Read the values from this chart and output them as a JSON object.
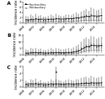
{
  "years": [
    1988,
    1989,
    1990,
    1991,
    1992,
    1993,
    1994,
    1995,
    1996,
    1997,
    1998,
    1999,
    2000,
    2001,
    2002,
    2003,
    2004,
    2005,
    2006,
    2007,
    2008,
    2009,
    2010,
    2011,
    2012,
    2013,
    2014,
    2015,
    2016,
    2017,
    2018
  ],
  "panel_A": {
    "label": "A",
    "pb": [
      1.2,
      1.0,
      1.5,
      1.3,
      1.8,
      1.2,
      1.4,
      1.0,
      1.1,
      1.3,
      1.5,
      1.2,
      1.8,
      1.4,
      1.2,
      1.3,
      1.6,
      1.5,
      1.4,
      1.8,
      2.0,
      1.7,
      2.2,
      2.5,
      2.8,
      2.3,
      3.0,
      2.7,
      2.4,
      2.6,
      2.8
    ],
    "pb_ci_lo": [
      0.3,
      0.2,
      0.4,
      0.3,
      0.5,
      0.3,
      0.4,
      0.2,
      0.2,
      0.3,
      0.4,
      0.2,
      0.5,
      0.3,
      0.3,
      0.3,
      0.4,
      0.4,
      0.3,
      0.5,
      0.6,
      0.4,
      0.7,
      0.8,
      1.0,
      0.7,
      1.0,
      0.9,
      0.7,
      0.8,
      0.9
    ],
    "pb_ci_hi": [
      2.5,
      2.3,
      3.0,
      2.7,
      3.5,
      2.5,
      2.8,
      2.2,
      2.4,
      2.7,
      3.0,
      2.5,
      3.5,
      2.8,
      2.5,
      2.7,
      3.1,
      3.0,
      2.9,
      3.5,
      3.8,
      3.4,
      4.2,
      4.8,
      5.2,
      4.5,
      5.8,
      5.2,
      4.8,
      5.0,
      5.5
    ],
    "mb": [
      0.5,
      0.4,
      0.6,
      0.5,
      0.7,
      0.4,
      0.5,
      0.3,
      0.4,
      0.5,
      0.6,
      0.4,
      0.7,
      0.5,
      0.4,
      0.5,
      0.6,
      0.5,
      0.5,
      0.6,
      0.7,
      0.6,
      0.8,
      0.9,
      1.0,
      0.8,
      1.1,
      0.9,
      0.8,
      0.9,
      0.9
    ],
    "mb_ci_lo": [
      0.05,
      0.03,
      0.08,
      0.07,
      0.1,
      0.05,
      0.07,
      0.03,
      0.03,
      0.05,
      0.08,
      0.04,
      0.1,
      0.07,
      0.05,
      0.07,
      0.08,
      0.07,
      0.07,
      0.08,
      0.1,
      0.08,
      0.15,
      0.18,
      0.22,
      0.15,
      0.25,
      0.18,
      0.15,
      0.18,
      0.18
    ],
    "mb_ci_hi": [
      1.2,
      1.0,
      1.5,
      1.3,
      1.7,
      1.1,
      1.3,
      0.9,
      1.0,
      1.2,
      1.5,
      1.0,
      1.7,
      1.3,
      1.1,
      1.3,
      1.5,
      1.3,
      1.3,
      1.5,
      1.7,
      1.5,
      1.9,
      2.1,
      2.3,
      1.9,
      2.5,
      2.1,
      1.9,
      2.1,
      2.1
    ],
    "ylim": [
      0,
      8
    ],
    "yticks": [
      0,
      2,
      4,
      6,
      8
    ],
    "smooth_pb": [
      1.1,
      1.15,
      1.2,
      1.25,
      1.3,
      1.35,
      1.4,
      1.38,
      1.36,
      1.38,
      1.4,
      1.42,
      1.5,
      1.55,
      1.5,
      1.52,
      1.58,
      1.62,
      1.65,
      1.72,
      1.85,
      1.9,
      2.1,
      2.2,
      2.4,
      2.45,
      2.6,
      2.65,
      2.55,
      2.6,
      2.7
    ],
    "smooth_mb": [
      0.45,
      0.47,
      0.5,
      0.52,
      0.55,
      0.5,
      0.52,
      0.48,
      0.46,
      0.48,
      0.5,
      0.52,
      0.58,
      0.58,
      0.55,
      0.55,
      0.58,
      0.58,
      0.58,
      0.62,
      0.67,
      0.68,
      0.75,
      0.8,
      0.88,
      0.88,
      0.95,
      0.92,
      0.88,
      0.9,
      0.92
    ]
  },
  "panel_B": {
    "label": "B",
    "pb": [
      1.5,
      1.2,
      2.0,
      1.8,
      2.2,
      1.5,
      1.8,
      1.2,
      1.3,
      1.5,
      2.0,
      1.5,
      2.2,
      1.8,
      1.5,
      1.5,
      1.8,
      2.0,
      1.8,
      2.5,
      3.0,
      3.5,
      5.0,
      6.0,
      7.0,
      6.5,
      8.0,
      7.5,
      6.5,
      7.0,
      7.5
    ],
    "pb_ci_lo": [
      0.3,
      0.2,
      0.5,
      0.4,
      0.6,
      0.3,
      0.4,
      0.2,
      0.2,
      0.3,
      0.5,
      0.3,
      0.6,
      0.4,
      0.3,
      0.3,
      0.4,
      0.5,
      0.4,
      0.7,
      1.0,
      1.2,
      2.0,
      2.8,
      3.5,
      3.2,
      4.5,
      4.0,
      3.5,
      4.0,
      4.5
    ],
    "pb_ci_hi": [
      4.0,
      3.5,
      5.0,
      4.5,
      5.5,
      4.0,
      4.5,
      3.5,
      3.7,
      4.0,
      5.0,
      4.0,
      5.5,
      4.5,
      4.0,
      4.0,
      4.5,
      5.0,
      4.5,
      6.0,
      7.0,
      8.0,
      10.0,
      12.0,
      13.5,
      12.5,
      14.5,
      14.0,
      12.5,
      13.5,
      14.0
    ],
    "mb": [
      0.8,
      0.6,
      1.0,
      0.9,
      1.1,
      0.7,
      0.9,
      0.6,
      0.6,
      0.7,
      1.0,
      0.7,
      1.1,
      0.9,
      0.7,
      0.7,
      0.9,
      1.0,
      0.9,
      1.2,
      1.5,
      1.7,
      2.5,
      3.0,
      3.5,
      3.2,
      4.0,
      3.7,
      3.2,
      3.5,
      3.7
    ],
    "mb_ci_lo": [
      0.1,
      0.05,
      0.2,
      0.15,
      0.2,
      0.1,
      0.15,
      0.05,
      0.05,
      0.1,
      0.2,
      0.1,
      0.2,
      0.15,
      0.1,
      0.1,
      0.15,
      0.2,
      0.15,
      0.3,
      0.5,
      0.6,
      1.0,
      1.3,
      1.5,
      1.4,
      1.8,
      1.6,
      1.3,
      1.5,
      1.6
    ],
    "mb_ci_hi": [
      2.2,
      1.8,
      2.8,
      2.5,
      3.0,
      2.0,
      2.5,
      1.8,
      1.8,
      2.0,
      2.8,
      2.0,
      3.0,
      2.5,
      2.0,
      2.0,
      2.5,
      2.8,
      2.5,
      3.3,
      4.0,
      4.5,
      6.0,
      7.0,
      8.0,
      7.5,
      9.5,
      9.0,
      8.0,
      8.5,
      9.0
    ],
    "ylim": [
      0,
      16
    ],
    "yticks": [
      0,
      5,
      10,
      15
    ],
    "smooth_pb": [
      1.4,
      1.5,
      1.6,
      1.7,
      1.8,
      1.7,
      1.7,
      1.6,
      1.55,
      1.58,
      1.65,
      1.7,
      1.8,
      1.82,
      1.75,
      1.72,
      1.8,
      1.9,
      1.95,
      2.2,
      2.6,
      3.0,
      4.0,
      5.2,
      6.2,
      6.5,
      7.2,
      7.4,
      7.0,
      7.1,
      7.3
    ],
    "smooth_mb": [
      0.7,
      0.75,
      0.8,
      0.85,
      0.9,
      0.85,
      0.85,
      0.8,
      0.75,
      0.78,
      0.82,
      0.85,
      0.9,
      0.9,
      0.87,
      0.85,
      0.9,
      0.95,
      0.97,
      1.1,
      1.3,
      1.5,
      2.0,
      2.6,
      3.1,
      3.2,
      3.6,
      3.7,
      3.5,
      3.55,
      3.65
    ]
  },
  "panel_C": {
    "label": "C",
    "pb": [
      0.8,
      0.6,
      1.0,
      0.9,
      1.1,
      0.7,
      0.9,
      0.6,
      0.6,
      0.7,
      1.0,
      0.8,
      1.0,
      0.9,
      0.8,
      0.7,
      0.9,
      1.0,
      0.9,
      0.8,
      1.0,
      1.0,
      1.2,
      1.3,
      1.4,
      1.2,
      1.5,
      1.3,
      1.2,
      1.3,
      1.4
    ],
    "pb_ci_lo": [
      0.2,
      0.1,
      0.25,
      0.2,
      0.3,
      0.15,
      0.2,
      0.1,
      0.1,
      0.15,
      0.25,
      0.2,
      0.25,
      0.2,
      0.2,
      0.15,
      0.2,
      0.25,
      0.2,
      0.2,
      0.25,
      0.25,
      0.35,
      0.4,
      0.45,
      0.35,
      0.5,
      0.4,
      0.35,
      0.4,
      0.45
    ],
    "pb_ci_hi": [
      1.8,
      1.4,
      2.2,
      2.0,
      2.4,
      1.6,
      2.0,
      1.4,
      1.4,
      1.6,
      2.2,
      1.8,
      2.2,
      2.0,
      1.8,
      1.6,
      2.0,
      2.2,
      2.0,
      1.8,
      2.2,
      2.2,
      2.6,
      2.8,
      3.0,
      2.6,
      3.2,
      2.8,
      2.6,
      2.8,
      3.0
    ],
    "mb": [
      0.4,
      0.3,
      0.5,
      0.45,
      0.55,
      0.35,
      0.45,
      0.3,
      0.3,
      0.35,
      0.5,
      0.4,
      0.5,
      0.45,
      0.4,
      0.35,
      0.45,
      0.5,
      0.45,
      0.4,
      0.5,
      0.5,
      0.6,
      0.65,
      0.7,
      0.6,
      0.75,
      0.65,
      0.6,
      0.65,
      0.7
    ],
    "mb_ci_lo": [
      0.05,
      0.03,
      0.08,
      0.07,
      0.1,
      0.05,
      0.07,
      0.03,
      0.03,
      0.05,
      0.08,
      0.06,
      0.08,
      0.07,
      0.06,
      0.05,
      0.07,
      0.08,
      0.07,
      0.06,
      0.08,
      0.08,
      0.1,
      0.12,
      0.14,
      0.1,
      0.15,
      0.12,
      0.1,
      0.12,
      0.14
    ],
    "mb_ci_hi": [
      0.9,
      0.7,
      1.1,
      1.0,
      1.2,
      0.8,
      1.0,
      0.7,
      0.7,
      0.8,
      1.1,
      0.9,
      1.1,
      1.0,
      0.9,
      0.8,
      1.0,
      1.1,
      1.0,
      0.9,
      1.1,
      1.1,
      1.3,
      1.4,
      1.5,
      1.3,
      1.6,
      1.4,
      1.3,
      1.4,
      1.5
    ],
    "spike_year_idx": 12,
    "spike_pb": 4.5,
    "spike_pb_ci_lo": 0.5,
    "spike_pb_ci_hi": 5.8,
    "ylim": [
      0,
      6
    ],
    "yticks": [
      0,
      2,
      4,
      6
    ],
    "smooth_pb": [
      0.85,
      0.87,
      0.9,
      0.92,
      0.95,
      0.9,
      0.88,
      0.85,
      0.82,
      0.83,
      0.87,
      0.88,
      0.9,
      0.9,
      0.88,
      0.86,
      0.88,
      0.9,
      0.9,
      0.9,
      0.93,
      0.95,
      1.0,
      1.05,
      1.1,
      1.1,
      1.18,
      1.2,
      1.18,
      1.2,
      1.22
    ],
    "smooth_mb": [
      0.38,
      0.38,
      0.4,
      0.42,
      0.44,
      0.42,
      0.42,
      0.4,
      0.38,
      0.39,
      0.41,
      0.42,
      0.44,
      0.44,
      0.42,
      0.41,
      0.42,
      0.44,
      0.44,
      0.43,
      0.45,
      0.47,
      0.5,
      0.53,
      0.56,
      0.56,
      0.6,
      0.62,
      0.6,
      0.61,
      0.62
    ]
  },
  "pb_color": "#000000",
  "mb_color": "#666666",
  "pb_marker": "s",
  "mb_marker": "^",
  "pb_label": "Paucibacillary",
  "mb_label": "Multibacillary",
  "xlabel_years": [
    1988,
    1992,
    1996,
    2000,
    2004,
    2008,
    2012,
    2016
  ],
  "bg_color": "#ffffff",
  "tick_fontsize": 3.0,
  "label_fontsize": 3.5,
  "ylabel": "Incidence rate"
}
